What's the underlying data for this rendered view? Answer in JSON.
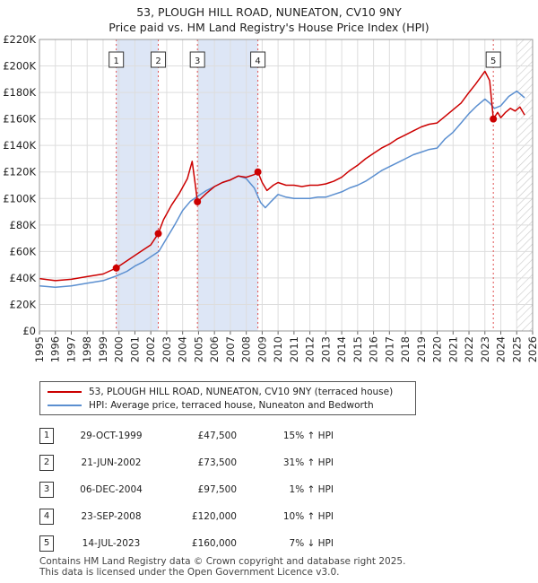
{
  "title": {
    "line1": "53, PLOUGH HILL ROAD, NUNEATON, CV10 9NY",
    "line2": "Price paid vs. HM Land Registry's House Price Index (HPI)"
  },
  "chart_data": {
    "type": "line",
    "title": "53, PLOUGH HILL ROAD, NUNEATON, CV10 9NY — Price paid vs. HM Land Registry's House Price Index (HPI)",
    "xlim": [
      1995,
      2026
    ],
    "ylim": [
      0,
      220000
    ],
    "y_ticks": [
      0,
      20000,
      40000,
      60000,
      80000,
      100000,
      120000,
      140000,
      160000,
      180000,
      200000,
      220000
    ],
    "y_tick_labels": [
      "£0",
      "£20K",
      "£40K",
      "£60K",
      "£80K",
      "£100K",
      "£120K",
      "£140K",
      "£160K",
      "£180K",
      "£200K",
      "£220K"
    ],
    "x_ticks": [
      1995,
      1996,
      1997,
      1998,
      1999,
      2000,
      2001,
      2002,
      2003,
      2004,
      2005,
      2006,
      2007,
      2008,
      2009,
      2010,
      2011,
      2012,
      2013,
      2014,
      2015,
      2016,
      2017,
      2018,
      2019,
      2020,
      2021,
      2022,
      2023,
      2024,
      2025,
      2026
    ],
    "x_tick_labels": [
      "1995",
      "1996",
      "1997",
      "1998",
      "1999",
      "2000",
      "2001",
      "2002",
      "2003",
      "2004",
      "2005",
      "2006",
      "2007",
      "2008",
      "2009",
      "2010",
      "2011",
      "2012",
      "2013",
      "2014",
      "2015",
      "2016",
      "2017",
      "2018",
      "2019",
      "2020",
      "2021",
      "2022",
      "2023",
      "2024",
      "2025",
      "2026"
    ],
    "grid": true,
    "shaded_periods": [
      [
        1999.83,
        2002.47
      ],
      [
        2004.93,
        2008.73
      ]
    ],
    "future_hatch_from": 2025.0,
    "colors": {
      "property": "#cc0000",
      "hpi": "#5b8fd0",
      "marker_line": "#e05050",
      "shade": "#dde6f6"
    },
    "series": [
      {
        "name": "53, PLOUGH HILL ROAD, NUNEATON, CV10 9NY (terraced house)",
        "color": "#cc0000",
        "x": [
          1995.0,
          1996.0,
          1997.0,
          1998.0,
          1999.0,
          1999.83,
          2000.5,
          2001.0,
          2001.5,
          2002.0,
          2002.47,
          2002.8,
          2003.3,
          2003.8,
          2004.3,
          2004.6,
          2004.8,
          2004.93,
          2005.5,
          2006.0,
          2006.5,
          2007.0,
          2007.5,
          2008.0,
          2008.5,
          2008.73,
          2009.0,
          2009.3,
          2009.7,
          2010.0,
          2010.5,
          2011.0,
          2011.5,
          2012.0,
          2012.5,
          2013.0,
          2013.5,
          2014.0,
          2014.5,
          2015.0,
          2015.5,
          2016.0,
          2016.5,
          2017.0,
          2017.5,
          2018.0,
          2018.5,
          2019.0,
          2019.5,
          2020.0,
          2020.5,
          2021.0,
          2021.5,
          2022.0,
          2022.4,
          2022.7,
          2023.0,
          2023.3,
          2023.53,
          2023.8,
          2024.0,
          2024.3,
          2024.6,
          2024.9,
          2025.2,
          2025.5
        ],
        "values": [
          39500,
          38000,
          39000,
          41000,
          43000,
          47500,
          53000,
          57000,
          61000,
          65000,
          73500,
          84000,
          95000,
          104000,
          115000,
          128000,
          110000,
          97500,
          104000,
          109000,
          112000,
          114000,
          117000,
          116000,
          118000,
          120000,
          112000,
          106000,
          110000,
          112000,
          110000,
          110000,
          109000,
          110000,
          110000,
          111000,
          113000,
          116000,
          121000,
          125000,
          130000,
          134000,
          138000,
          141000,
          145000,
          148000,
          151000,
          154000,
          156000,
          157000,
          162000,
          167000,
          172000,
          180000,
          186000,
          191000,
          196000,
          189000,
          160000,
          165000,
          161000,
          165000,
          168000,
          166000,
          169000,
          163000
        ]
      },
      {
        "name": "HPI: Average price, terraced house, Nuneaton and Bedworth",
        "color": "#5b8fd0",
        "x": [
          1995.0,
          1996.0,
          1997.0,
          1998.0,
          1999.0,
          1999.83,
          2000.5,
          2001.0,
          2001.5,
          2002.0,
          2002.5,
          2003.0,
          2003.5,
          2004.0,
          2004.5,
          2005.0,
          2005.5,
          2006.0,
          2006.5,
          2007.0,
          2007.5,
          2008.0,
          2008.5,
          2008.9,
          2009.2,
          2009.5,
          2010.0,
          2010.5,
          2011.0,
          2011.5,
          2012.0,
          2012.5,
          2013.0,
          2013.5,
          2014.0,
          2014.5,
          2015.0,
          2015.5,
          2016.0,
          2016.5,
          2017.0,
          2017.5,
          2018.0,
          2018.5,
          2019.0,
          2019.5,
          2020.0,
          2020.5,
          2021.0,
          2021.5,
          2022.0,
          2022.5,
          2023.0,
          2023.3,
          2023.6,
          2024.0,
          2024.5,
          2025.0,
          2025.5
        ],
        "values": [
          34000,
          33000,
          34000,
          36000,
          38000,
          41500,
          45000,
          49000,
          52000,
          56000,
          60000,
          70000,
          80000,
          91000,
          98000,
          102000,
          106000,
          109000,
          112000,
          114000,
          117000,
          115000,
          108000,
          97000,
          93000,
          97000,
          103000,
          101000,
          100000,
          100000,
          100000,
          101000,
          101000,
          103000,
          105000,
          108000,
          110000,
          113000,
          117000,
          121000,
          124000,
          127000,
          130000,
          133000,
          135000,
          137000,
          138000,
          145000,
          150000,
          157000,
          164000,
          170000,
          175000,
          172000,
          168000,
          170000,
          177000,
          181000,
          176000
        ]
      }
    ],
    "sales": [
      {
        "id": "1",
        "x": 1999.83,
        "price": 47500
      },
      {
        "id": "2",
        "x": 2002.47,
        "price": 73500
      },
      {
        "id": "3",
        "x": 2004.93,
        "price": 97500
      },
      {
        "id": "4",
        "x": 2008.73,
        "price": 120000
      },
      {
        "id": "5",
        "x": 2023.53,
        "price": 160000
      }
    ]
  },
  "legend": {
    "property_label": "53, PLOUGH HILL ROAD, NUNEATON, CV10 9NY (terraced house)",
    "hpi_label": "HPI: Average price, terraced house, Nuneaton and Bedworth"
  },
  "sales_table": [
    {
      "num": "1",
      "date": "29-OCT-1999",
      "price": "£47,500",
      "hpi": "15% ↑ HPI"
    },
    {
      "num": "2",
      "date": "21-JUN-2002",
      "price": "£73,500",
      "hpi": "31% ↑ HPI"
    },
    {
      "num": "3",
      "date": "06-DEC-2004",
      "price": "£97,500",
      "hpi": "1% ↑ HPI"
    },
    {
      "num": "4",
      "date": "23-SEP-2008",
      "price": "£120,000",
      "hpi": "10% ↑ HPI"
    },
    {
      "num": "5",
      "date": "14-JUL-2023",
      "price": "£160,000",
      "hpi": "7% ↓ HPI"
    }
  ],
  "footer": {
    "line1": "Contains HM Land Registry data © Crown copyright and database right 2025.",
    "line2": "This data is licensed under the Open Government Licence v3.0."
  }
}
